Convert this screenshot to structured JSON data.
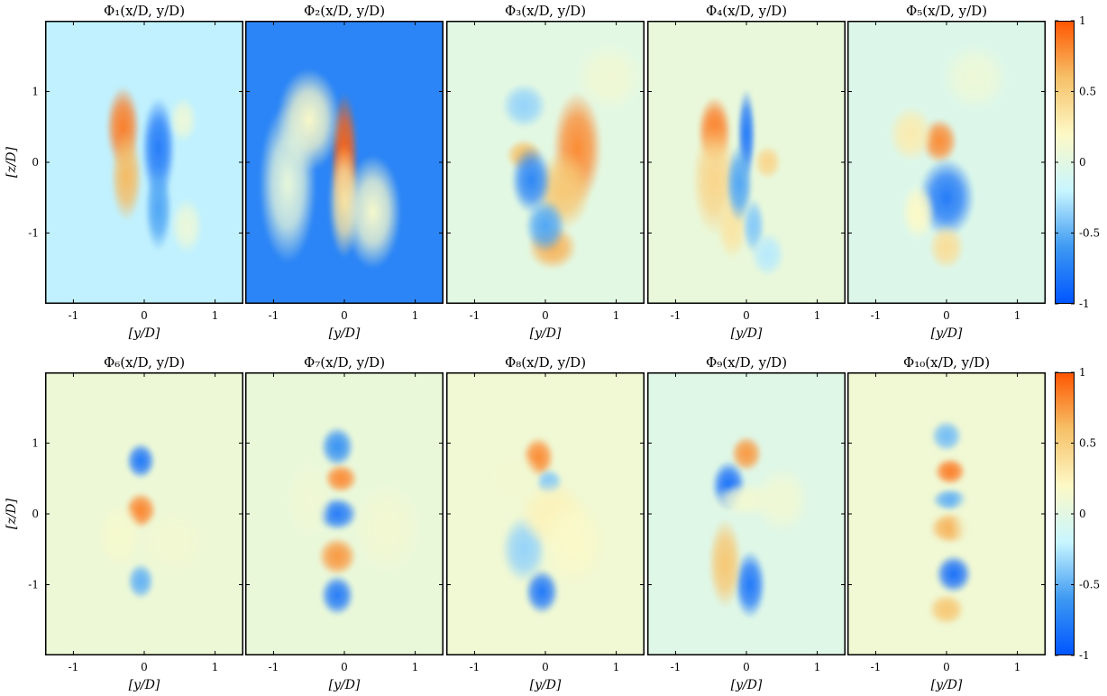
{
  "figure": {
    "xlabel": "[y/D]",
    "ylabel": "[z/D]",
    "x_ticks": [
      "-1",
      "0",
      "1"
    ],
    "y_ticks": [
      "1",
      "0",
      "-1"
    ],
    "colorbar_ticks": [
      "1",
      "0.5",
      "0",
      "-0.5",
      "-1"
    ],
    "colorbar_range": [
      -1,
      1
    ],
    "colormap": [
      "#0055ff",
      "#3d99f2",
      "#c8f6ff",
      "#fdf9c6",
      "#f6c067",
      "#ff5500"
    ]
  },
  "chart_data": [
    {
      "type": "heatmap",
      "title": "Φ₁(x/D, y/D)",
      "xlabel": "[y/D]",
      "ylabel": "[z/D]",
      "xlim": [
        -1.4,
        1.4
      ],
      "ylim": [
        -2,
        2
      ],
      "background": -0.22,
      "blobs": [
        [
          -0.3,
          0.5,
          0.15,
          0.36,
          0.85
        ],
        [
          -0.25,
          -0.2,
          0.14,
          0.4,
          0.62
        ],
        [
          0.2,
          0.2,
          0.15,
          0.45,
          -0.78
        ],
        [
          0.2,
          -0.65,
          0.12,
          0.38,
          -0.55
        ],
        [
          0.55,
          0.6,
          0.12,
          0.2,
          0.08
        ],
        [
          0.6,
          -0.9,
          0.14,
          0.25,
          0.07
        ]
      ]
    },
    {
      "type": "heatmap",
      "title": "Φ₂(x/D, y/D)",
      "xlabel": "[y/D]",
      "ylabel": "[z/D]",
      "xlim": [
        -1.4,
        1.4
      ],
      "ylim": [
        -2,
        2
      ],
      "background": -0.72,
      "blobs": [
        [
          0.0,
          0.1,
          0.12,
          0.55,
          0.95
        ],
        [
          0.0,
          -0.55,
          0.14,
          0.5,
          0.35
        ],
        [
          -0.5,
          0.6,
          0.28,
          0.45,
          0.18
        ],
        [
          0.4,
          -0.7,
          0.25,
          0.5,
          0.15
        ],
        [
          -0.8,
          -0.3,
          0.25,
          0.7,
          0.05
        ]
      ]
    },
    {
      "type": "heatmap",
      "title": "Φ₃(x/D, y/D)",
      "xlabel": "[y/D]",
      "ylabel": "[z/D]",
      "xlim": [
        -1.4,
        1.4
      ],
      "ylim": [
        -2,
        2
      ],
      "background": 0.0,
      "blobs": [
        [
          0.45,
          0.2,
          0.22,
          0.5,
          0.8
        ],
        [
          0.25,
          -0.4,
          0.25,
          0.35,
          0.55
        ],
        [
          0.1,
          -1.2,
          0.22,
          0.2,
          0.65
        ],
        [
          -0.3,
          0.1,
          0.16,
          0.14,
          0.6
        ],
        [
          -0.2,
          -0.25,
          0.18,
          0.3,
          -0.72
        ],
        [
          0.0,
          -0.9,
          0.18,
          0.24,
          -0.55
        ],
        [
          -0.3,
          0.8,
          0.2,
          0.2,
          -0.35
        ],
        [
          0.9,
          1.2,
          0.3,
          0.3,
          0.1
        ]
      ]
    },
    {
      "type": "heatmap",
      "title": "Φ₄(x/D, y/D)",
      "xlabel": "[y/D]",
      "ylabel": "[z/D]",
      "xlim": [
        -1.4,
        1.4
      ],
      "ylim": [
        -2,
        2
      ],
      "background": 0.05,
      "blobs": [
        [
          -0.45,
          0.45,
          0.15,
          0.3,
          0.85
        ],
        [
          -0.45,
          -0.25,
          0.2,
          0.5,
          0.45
        ],
        [
          -0.2,
          -0.9,
          0.14,
          0.3,
          0.35
        ],
        [
          0.0,
          0.4,
          0.08,
          0.4,
          -0.8
        ],
        [
          -0.1,
          -0.3,
          0.12,
          0.35,
          -0.55
        ],
        [
          0.1,
          -0.9,
          0.1,
          0.25,
          -0.4
        ],
        [
          0.3,
          0.0,
          0.12,
          0.15,
          0.45
        ],
        [
          0.3,
          -1.3,
          0.15,
          0.2,
          -0.25
        ]
      ]
    },
    {
      "type": "heatmap",
      "title": "Φ₅(x/D, y/D)",
      "xlabel": "[y/D]",
      "ylabel": "[z/D]",
      "xlim": [
        -1.4,
        1.4
      ],
      "ylim": [
        -2,
        2
      ],
      "background": -0.05,
      "blobs": [
        [
          -0.1,
          0.3,
          0.16,
          0.2,
          0.8
        ],
        [
          0.0,
          -0.5,
          0.25,
          0.35,
          -0.78
        ],
        [
          -0.5,
          0.4,
          0.2,
          0.25,
          0.3
        ],
        [
          0.0,
          -1.2,
          0.16,
          0.2,
          0.4
        ],
        [
          -0.4,
          -0.7,
          0.15,
          0.25,
          0.2
        ],
        [
          0.4,
          1.2,
          0.3,
          0.3,
          0.08
        ]
      ]
    },
    {
      "type": "heatmap",
      "title": "Φ₆(x/D, y/D)",
      "xlabel": "[y/D]",
      "ylabel": "[z/D]",
      "xlim": [
        -1.4,
        1.4
      ],
      "ylim": [
        -2,
        2
      ],
      "background": 0.08,
      "blobs": [
        [
          -0.05,
          0.75,
          0.13,
          0.16,
          -0.8
        ],
        [
          -0.05,
          0.05,
          0.14,
          0.16,
          0.82
        ],
        [
          -0.05,
          -0.95,
          0.12,
          0.16,
          -0.5
        ],
        [
          -0.35,
          -0.3,
          0.2,
          0.3,
          0.15
        ],
        [
          0.4,
          -0.4,
          0.3,
          0.3,
          0.12
        ]
      ]
    },
    {
      "type": "heatmap",
      "title": "Φ₇(x/D, y/D)",
      "xlabel": "[y/D]",
      "ylabel": "[z/D]",
      "xlim": [
        -1.4,
        1.4
      ],
      "ylim": [
        -2,
        2
      ],
      "background": 0.06,
      "blobs": [
        [
          -0.1,
          0.95,
          0.15,
          0.18,
          -0.65
        ],
        [
          -0.05,
          0.5,
          0.15,
          0.13,
          0.8
        ],
        [
          -0.1,
          0.0,
          0.18,
          0.15,
          -0.78
        ],
        [
          -0.1,
          -0.6,
          0.17,
          0.17,
          0.75
        ],
        [
          -0.1,
          -1.15,
          0.15,
          0.18,
          -0.78
        ],
        [
          0.6,
          -0.2,
          0.3,
          0.4,
          0.12
        ],
        [
          -0.5,
          0.2,
          0.2,
          0.35,
          0.1
        ]
      ]
    },
    {
      "type": "heatmap",
      "title": "Φ₈(x/D, y/D)",
      "xlabel": "[y/D]",
      "ylabel": "[z/D]",
      "xlim": [
        -1.4,
        1.4
      ],
      "ylim": [
        -2,
        2
      ],
      "background": 0.1,
      "blobs": [
        [
          -0.1,
          0.8,
          0.14,
          0.18,
          0.8
        ],
        [
          0.05,
          0.45,
          0.12,
          0.12,
          -0.4
        ],
        [
          -0.05,
          -1.1,
          0.15,
          0.2,
          -0.8
        ],
        [
          -0.3,
          -0.5,
          0.2,
          0.3,
          -0.35
        ],
        [
          0.1,
          0.0,
          0.3,
          0.3,
          0.25
        ],
        [
          0.4,
          -0.4,
          0.3,
          0.4,
          0.18
        ],
        [
          -0.45,
          0.5,
          0.25,
          0.25,
          0.12
        ]
      ]
    },
    {
      "type": "heatmap",
      "title": "Φ₉(x/D, y/D)",
      "xlabel": "[y/D]",
      "ylabel": "[z/D]",
      "xlim": [
        -1.4,
        1.4
      ],
      "ylim": [
        -2,
        2
      ],
      "background": -0.03,
      "blobs": [
        [
          -0.25,
          0.4,
          0.15,
          0.22,
          -0.85
        ],
        [
          0.0,
          0.85,
          0.14,
          0.16,
          0.75
        ],
        [
          0.05,
          -1.0,
          0.14,
          0.3,
          -0.8
        ],
        [
          -0.3,
          -0.7,
          0.15,
          0.4,
          0.55
        ],
        [
          0.0,
          0.2,
          0.3,
          0.15,
          0.12
        ],
        [
          0.5,
          0.2,
          0.25,
          0.3,
          0.1
        ]
      ]
    },
    {
      "type": "heatmap",
      "title": "Φ₁₀(x/D, y/D)",
      "xlabel": "[y/D]",
      "ylabel": "[z/D]",
      "xlim": [
        -1.4,
        1.4
      ],
      "ylim": [
        -2,
        2
      ],
      "background": 0.1,
      "blobs": [
        [
          0.0,
          1.1,
          0.14,
          0.14,
          -0.45
        ],
        [
          0.05,
          0.6,
          0.14,
          0.12,
          0.85
        ],
        [
          0.05,
          0.2,
          0.16,
          0.1,
          -0.5
        ],
        [
          0.05,
          -0.2,
          0.18,
          0.14,
          0.65
        ],
        [
          0.1,
          -0.85,
          0.16,
          0.17,
          -0.85
        ],
        [
          0.0,
          -1.35,
          0.16,
          0.14,
          0.55
        ],
        [
          0.45,
          -0.1,
          0.25,
          0.35,
          0.1
        ]
      ]
    }
  ]
}
